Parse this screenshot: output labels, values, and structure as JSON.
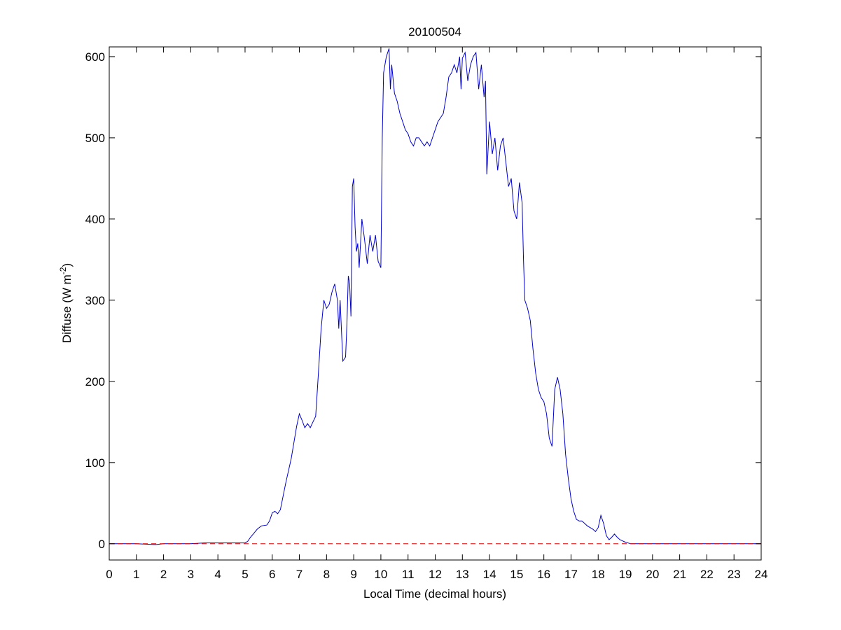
{
  "chart_data": {
    "type": "line",
    "title": "20100504",
    "xlabel": "Local Time (decimal hours)",
    "ylabel_main": "Diffuse (W m",
    "ylabel_sup": "-2",
    "ylabel_end": ")",
    "xlim": [
      0,
      24
    ],
    "ylim": [
      -20,
      612
    ],
    "x_ticks": [
      0,
      1,
      2,
      3,
      4,
      5,
      6,
      7,
      8,
      9,
      10,
      11,
      12,
      13,
      14,
      15,
      16,
      17,
      18,
      19,
      20,
      21,
      22,
      23,
      24
    ],
    "y_ticks": [
      0,
      100,
      200,
      300,
      400,
      500,
      600
    ],
    "grid": false,
    "legend": "none",
    "colors": {
      "series": "#0000cc",
      "zero_line": "#dd0000",
      "axes": "#000000"
    },
    "series": [
      {
        "style": "solid",
        "x": [
          0,
          1,
          1.7,
          2,
          3,
          3.5,
          4,
          4.5,
          5,
          5.1,
          5.2,
          5.3,
          5.45,
          5.6,
          5.8,
          5.9,
          6,
          6.1,
          6.2,
          6.3,
          6.5,
          6.7,
          6.8,
          6.9,
          7,
          7.1,
          7.2,
          7.3,
          7.4,
          7.5,
          7.6,
          7.7,
          7.8,
          7.9,
          8,
          8.1,
          8.2,
          8.3,
          8.4,
          8.45,
          8.5,
          8.6,
          8.7,
          8.75,
          8.8,
          8.85,
          8.9,
          8.95,
          9,
          9.05,
          9.1,
          9.15,
          9.2,
          9.3,
          9.4,
          9.5,
          9.6,
          9.7,
          9.8,
          9.9,
          10,
          10.05,
          10.1,
          10.2,
          10.3,
          10.35,
          10.4,
          10.5,
          10.6,
          10.7,
          10.8,
          10.9,
          11,
          11.1,
          11.2,
          11.3,
          11.4,
          11.5,
          11.6,
          11.7,
          11.8,
          11.9,
          12,
          12.1,
          12.2,
          12.3,
          12.4,
          12.5,
          12.6,
          12.7,
          12.8,
          12.9,
          12.95,
          13,
          13.1,
          13.2,
          13.3,
          13.4,
          13.5,
          13.6,
          13.7,
          13.8,
          13.85,
          13.9,
          14,
          14.1,
          14.2,
          14.3,
          14.4,
          14.5,
          14.6,
          14.7,
          14.8,
          14.9,
          15,
          15.1,
          15.2,
          15.25,
          15.3,
          15.4,
          15.5,
          15.6,
          15.7,
          15.8,
          15.9,
          16,
          16.1,
          16.2,
          16.3,
          16.4,
          16.5,
          16.6,
          16.7,
          16.8,
          16.9,
          17,
          17.1,
          17.2,
          17.3,
          17.4,
          17.5,
          17.6,
          17.7,
          17.8,
          17.9,
          18,
          18.1,
          18.2,
          18.3,
          18.4,
          18.5,
          18.6,
          18.7,
          18.8,
          19,
          19.2,
          19.5,
          20,
          21,
          22,
          23,
          24
        ],
        "y": [
          0,
          0,
          -1,
          0,
          0,
          1,
          1,
          1,
          1,
          3,
          8,
          12,
          18,
          22,
          23,
          28,
          38,
          40,
          37,
          42,
          75,
          105,
          125,
          145,
          160,
          152,
          143,
          148,
          143,
          150,
          157,
          210,
          265,
          300,
          290,
          295,
          310,
          320,
          300,
          265,
          300,
          225,
          230,
          270,
          330,
          320,
          280,
          440,
          450,
          390,
          360,
          370,
          340,
          400,
          375,
          345,
          380,
          360,
          380,
          348,
          340,
          500,
          580,
          600,
          610,
          560,
          590,
          555,
          545,
          530,
          520,
          510,
          505,
          495,
          490,
          500,
          500,
          495,
          490,
          495,
          490,
          500,
          510,
          520,
          525,
          530,
          550,
          575,
          580,
          590,
          580,
          600,
          560,
          598,
          605,
          570,
          590,
          600,
          605,
          560,
          590,
          550,
          570,
          455,
          520,
          480,
          500,
          460,
          490,
          500,
          470,
          440,
          450,
          410,
          400,
          445,
          420,
          350,
          300,
          290,
          275,
          240,
          210,
          190,
          180,
          175,
          160,
          130,
          120,
          190,
          205,
          190,
          160,
          110,
          80,
          55,
          40,
          30,
          28,
          28,
          25,
          22,
          20,
          18,
          15,
          20,
          35,
          25,
          10,
          5,
          8,
          12,
          8,
          5,
          2,
          0,
          0,
          0,
          0,
          0,
          0,
          0
        ]
      },
      {
        "style": "dashed",
        "x": [
          0,
          24
        ],
        "y": [
          0,
          0
        ]
      }
    ]
  }
}
